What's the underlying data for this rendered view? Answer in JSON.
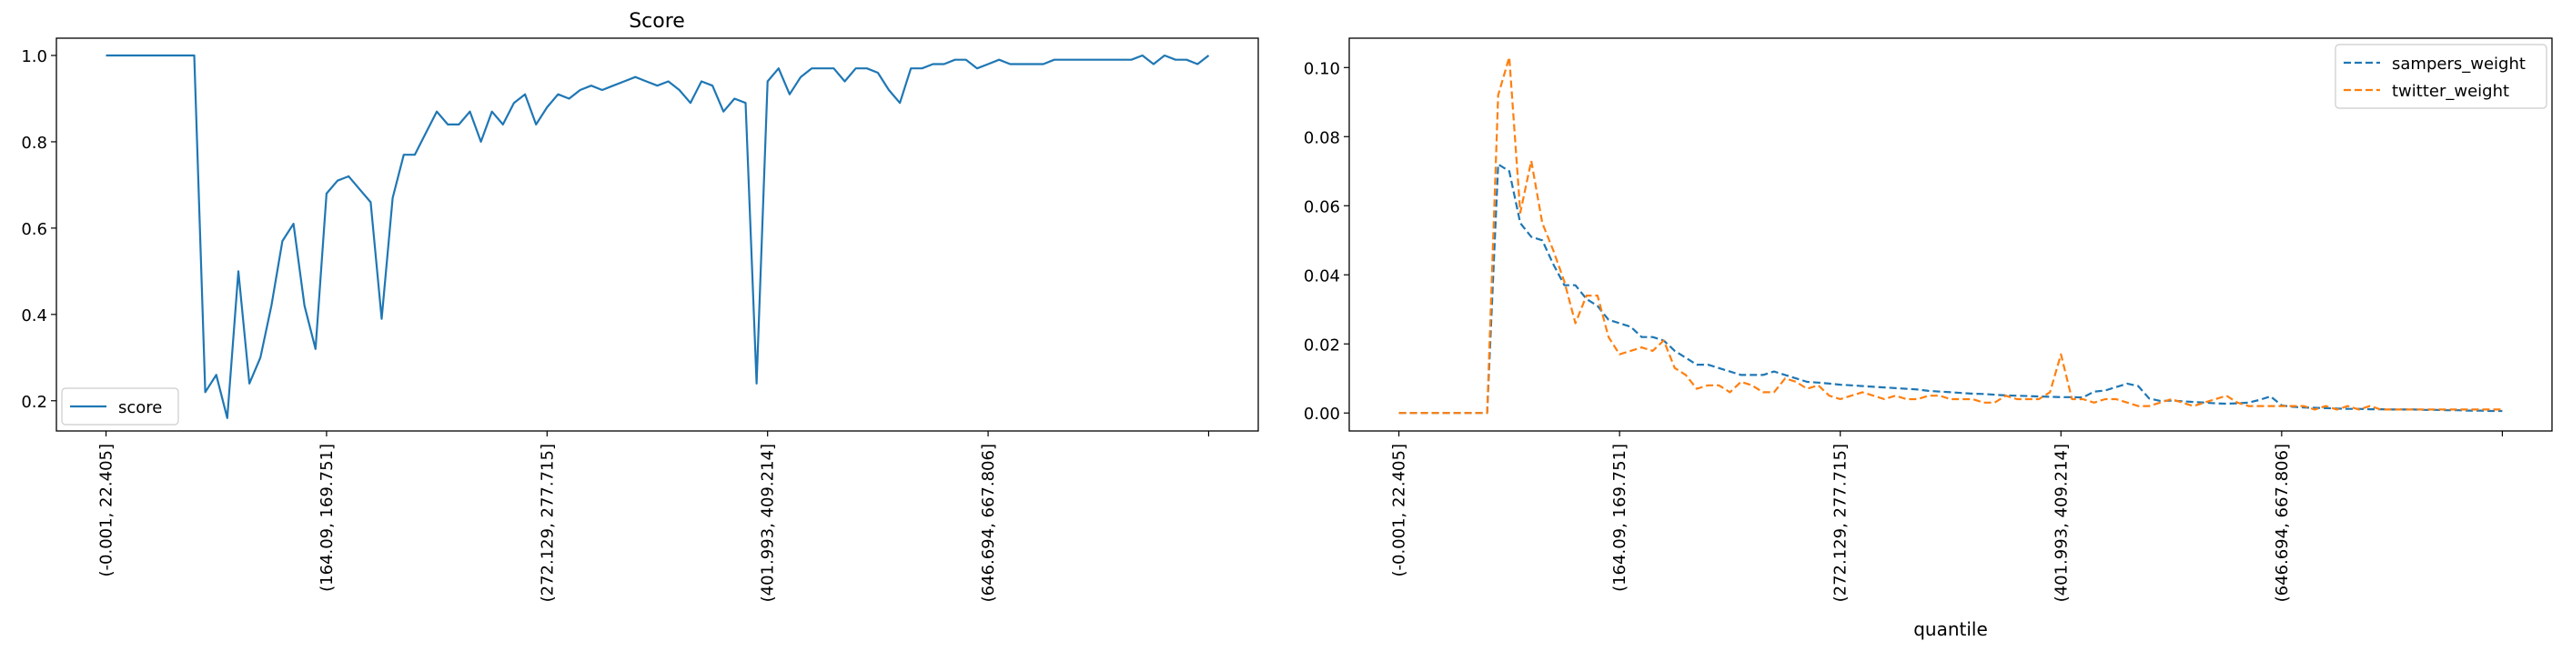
{
  "chart_data": [
    {
      "type": "line",
      "title": "Score",
      "xlabel": "",
      "ylabel": "",
      "x_count": 101,
      "xlim": [
        -4.5,
        104.5
      ],
      "ylim": [
        0.13,
        1.04
      ],
      "yticks": [
        0.2,
        0.4,
        0.6,
        0.8,
        1.0
      ],
      "ytick_labels": [
        "0.2",
        "0.4",
        "0.6",
        "0.8",
        "1.0"
      ],
      "xticks": [
        0,
        20,
        40,
        60,
        80,
        100
      ],
      "xtick_labels": [
        "(-0.001, 22.405]",
        "(164.09, 169.751]",
        "(272.129, 277.715]",
        "(401.993, 409.214]",
        "(646.694, 667.806]",
        ""
      ],
      "grid": false,
      "legend_position": "lower left",
      "series": [
        {
          "name": "score",
          "color": "#1f77b4",
          "linestyle": "solid",
          "values": [
            1.0,
            1.0,
            1.0,
            1.0,
            1.0,
            1.0,
            1.0,
            1.0,
            1.0,
            0.22,
            0.26,
            0.16,
            0.5,
            0.24,
            0.3,
            0.42,
            0.57,
            0.61,
            0.42,
            0.32,
            0.68,
            0.71,
            0.72,
            0.69,
            0.66,
            0.39,
            0.67,
            0.77,
            0.77,
            0.82,
            0.87,
            0.84,
            0.84,
            0.87,
            0.8,
            0.87,
            0.84,
            0.89,
            0.91,
            0.84,
            0.88,
            0.91,
            0.9,
            0.92,
            0.93,
            0.92,
            0.93,
            0.94,
            0.95,
            0.94,
            0.93,
            0.94,
            0.92,
            0.89,
            0.94,
            0.93,
            0.87,
            0.9,
            0.89,
            0.24,
            0.94,
            0.97,
            0.91,
            0.95,
            0.97,
            0.97,
            0.97,
            0.94,
            0.97,
            0.97,
            0.96,
            0.92,
            0.89,
            0.97,
            0.97,
            0.98,
            0.98,
            0.99,
            0.99,
            0.97,
            0.98,
            0.99,
            0.98,
            0.98,
            0.98,
            0.98,
            0.99,
            0.99,
            0.99,
            0.99,
            0.99,
            0.99,
            0.99,
            0.99,
            1.0,
            0.98,
            1.0,
            0.99,
            0.99,
            0.98,
            1.0
          ]
        }
      ]
    },
    {
      "type": "line",
      "title": "",
      "xlabel": "quantile",
      "ylabel": "",
      "x_count": 101,
      "xlim": [
        -4.5,
        104.5
      ],
      "ylim": [
        -0.0052,
        0.1085
      ],
      "yticks": [
        0.0,
        0.02,
        0.04,
        0.06,
        0.08,
        0.1
      ],
      "ytick_labels": [
        "0.00",
        "0.02",
        "0.04",
        "0.06",
        "0.08",
        "0.10"
      ],
      "xticks": [
        0,
        20,
        40,
        60,
        80,
        100
      ],
      "xtick_labels": [
        "(-0.001, 22.405]",
        "(164.09, 169.751]",
        "(272.129, 277.715]",
        "(401.993, 409.214]",
        "(646.694, 667.806]",
        ""
      ],
      "grid": false,
      "legend_position": "upper right",
      "series": [
        {
          "name": "sampers_weight",
          "color": "#1f77b4",
          "linestyle": "dashed",
          "values": [
            0.0,
            0.0,
            0.0,
            0.0,
            0.0,
            0.0,
            0.0,
            0.0,
            0.0,
            0.072,
            0.07,
            0.055,
            0.051,
            0.05,
            0.043,
            0.037,
            0.037,
            0.033,
            0.031,
            0.027,
            0.026,
            0.025,
            0.022,
            0.022,
            0.021,
            0.018,
            0.016,
            0.014,
            0.014,
            0.013,
            0.012,
            0.011,
            0.011,
            0.011,
            0.012,
            0.011,
            0.01,
            0.009,
            0.0088,
            0.0085,
            0.0082,
            0.008,
            0.0078,
            0.0076,
            0.0074,
            0.0072,
            0.007,
            0.0068,
            0.0064,
            0.0062,
            0.006,
            0.0058,
            0.0056,
            0.0055,
            0.0053,
            0.0051,
            0.005,
            0.0049,
            0.0048,
            0.0047,
            0.0046,
            0.0046,
            0.0045,
            0.0062,
            0.0065,
            0.0075,
            0.0085,
            0.0078,
            0.0042,
            0.0035,
            0.0036,
            0.0034,
            0.0032,
            0.003,
            0.0028,
            0.0027,
            0.0028,
            0.003,
            0.0038,
            0.0048,
            0.0022,
            0.0018,
            0.0016,
            0.0015,
            0.0014,
            0.0013,
            0.0012,
            0.0012,
            0.0011,
            0.0011,
            0.001,
            0.001,
            0.001,
            0.0009,
            0.0009,
            0.0008,
            0.0008,
            0.0007,
            0.0007,
            0.0006,
            0.0006
          ]
        },
        {
          "name": "twitter_weight",
          "color": "#ff7f0e",
          "linestyle": "dashed",
          "values": [
            0.0,
            0.0,
            0.0,
            0.0,
            0.0,
            0.0,
            0.0,
            0.0,
            0.0,
            0.092,
            0.103,
            0.058,
            0.073,
            0.055,
            0.047,
            0.038,
            0.026,
            0.034,
            0.034,
            0.022,
            0.017,
            0.018,
            0.019,
            0.018,
            0.021,
            0.013,
            0.011,
            0.007,
            0.008,
            0.008,
            0.006,
            0.009,
            0.008,
            0.006,
            0.006,
            0.01,
            0.009,
            0.007,
            0.008,
            0.005,
            0.004,
            0.005,
            0.006,
            0.005,
            0.004,
            0.005,
            0.004,
            0.004,
            0.005,
            0.005,
            0.004,
            0.004,
            0.004,
            0.003,
            0.003,
            0.005,
            0.004,
            0.004,
            0.004,
            0.006,
            0.017,
            0.004,
            0.004,
            0.003,
            0.004,
            0.004,
            0.003,
            0.002,
            0.002,
            0.003,
            0.004,
            0.003,
            0.002,
            0.003,
            0.004,
            0.005,
            0.003,
            0.002,
            0.002,
            0.002,
            0.002,
            0.002,
            0.002,
            0.001,
            0.002,
            0.001,
            0.002,
            0.001,
            0.002,
            0.001,
            0.001,
            0.001,
            0.001,
            0.001,
            0.001,
            0.001,
            0.001,
            0.001,
            0.001,
            0.001,
            0.001
          ]
        }
      ]
    }
  ]
}
